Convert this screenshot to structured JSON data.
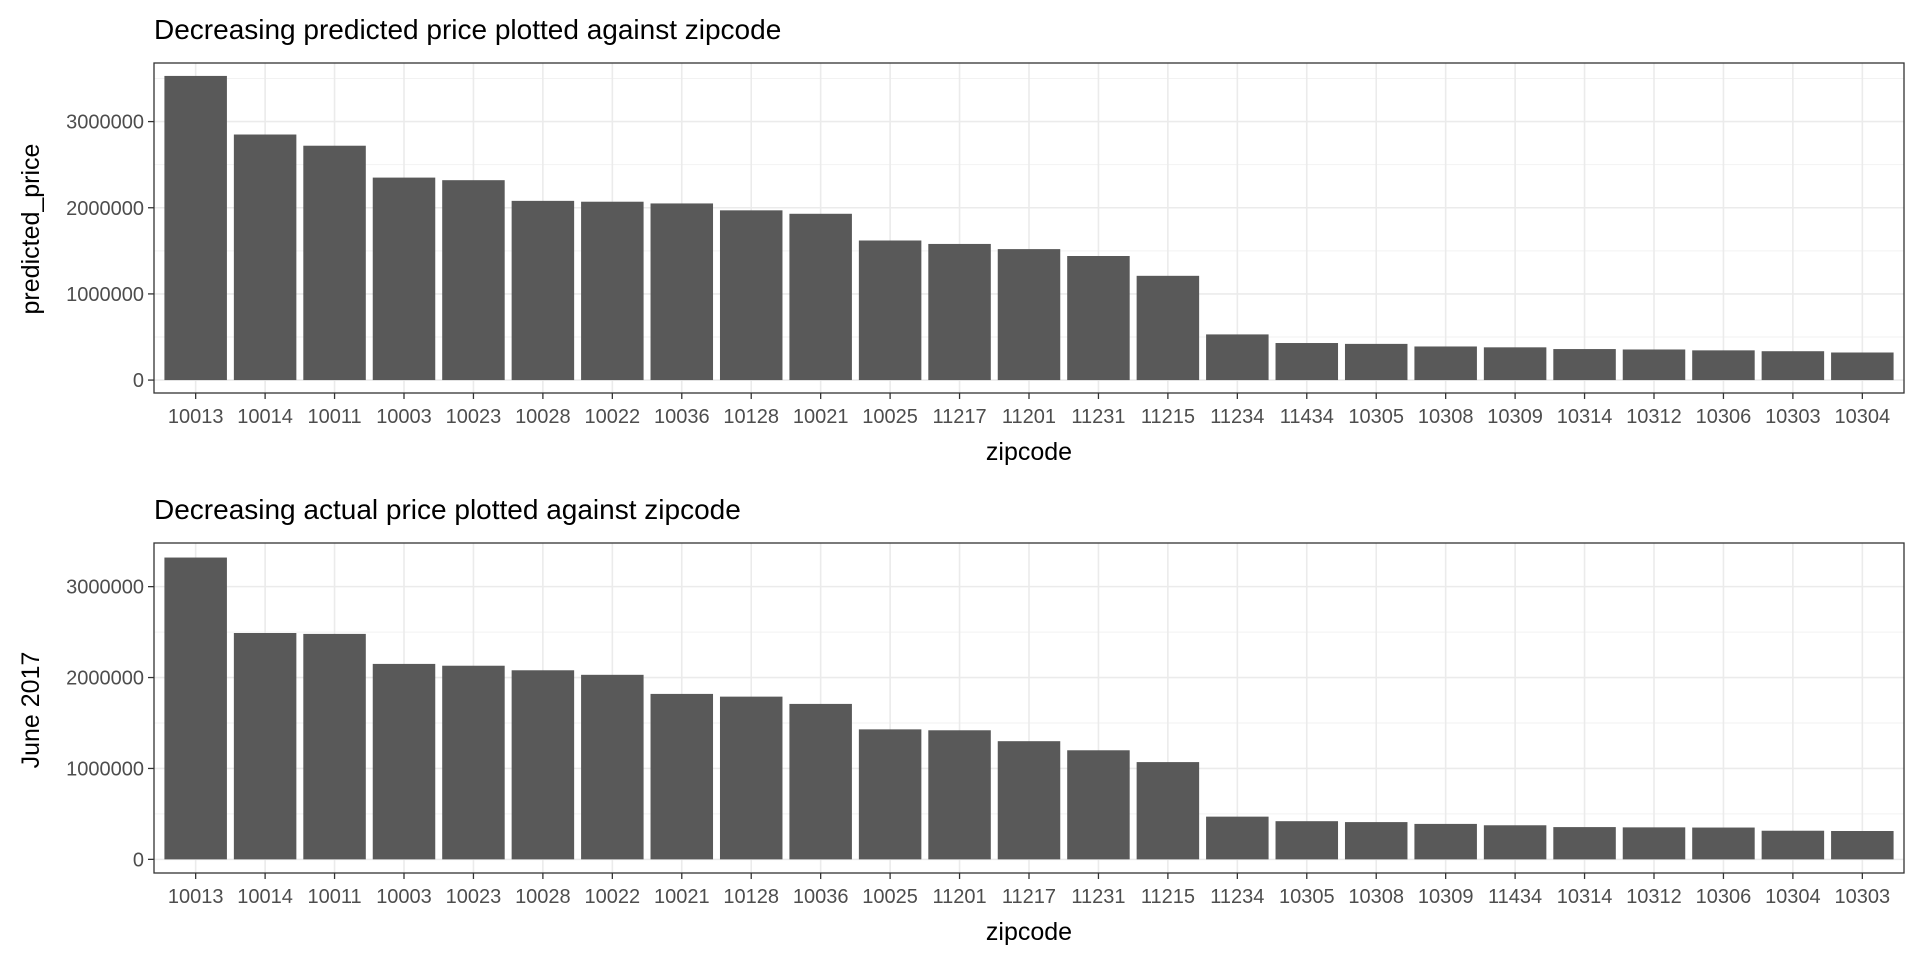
{
  "chart_data": [
    {
      "type": "bar",
      "title": "Decreasing predicted price plotted against zipcode",
      "xlabel": "zipcode",
      "ylabel": "predicted_price",
      "ylim": [
        -150000,
        3680000
      ],
      "yticks": [
        0,
        1000000,
        2000000,
        3000000
      ],
      "ytick_labels": [
        "0",
        "1000000",
        "2000000",
        "3000000"
      ],
      "grid": true,
      "bar_color": "#595959",
      "categories": [
        "10013",
        "10014",
        "10011",
        "10003",
        "10023",
        "10028",
        "10022",
        "10036",
        "10128",
        "10021",
        "10025",
        "11217",
        "11201",
        "11231",
        "11215",
        "11234",
        "11434",
        "10305",
        "10308",
        "10309",
        "10314",
        "10312",
        "10306",
        "10303",
        "10304"
      ],
      "values": [
        3530000,
        2850000,
        2720000,
        2350000,
        2320000,
        2080000,
        2070000,
        2050000,
        1970000,
        1930000,
        1620000,
        1580000,
        1520000,
        1440000,
        1210000,
        530000,
        430000,
        420000,
        390000,
        380000,
        360000,
        355000,
        345000,
        335000,
        320000
      ]
    },
    {
      "type": "bar",
      "title": "Decreasing actual price plotted against zipcode",
      "xlabel": "zipcode",
      "ylabel": "June 2017",
      "ylim": [
        -150000,
        3480000
      ],
      "yticks": [
        0,
        1000000,
        2000000,
        3000000
      ],
      "ytick_labels": [
        "0",
        "1000000",
        "2000000",
        "3000000"
      ],
      "grid": true,
      "bar_color": "#595959",
      "categories": [
        "10013",
        "10014",
        "10011",
        "10003",
        "10023",
        "10028",
        "10022",
        "10021",
        "10128",
        "10036",
        "10025",
        "11201",
        "11217",
        "11231",
        "11215",
        "11234",
        "10305",
        "10308",
        "10309",
        "11434",
        "10314",
        "10312",
        "10306",
        "10304",
        "10303"
      ],
      "values": [
        3320000,
        2490000,
        2480000,
        2150000,
        2130000,
        2080000,
        2030000,
        1820000,
        1790000,
        1710000,
        1430000,
        1420000,
        1300000,
        1200000,
        1070000,
        470000,
        420000,
        410000,
        390000,
        375000,
        355000,
        352000,
        350000,
        315000,
        312000
      ]
    }
  ]
}
